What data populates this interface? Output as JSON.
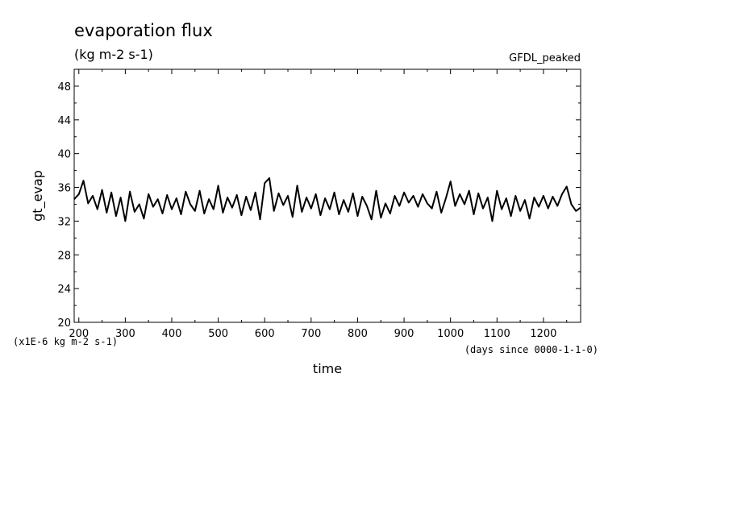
{
  "chart_data": {
    "type": "line",
    "title": "evaporation flux",
    "subtitle": "(kg m-2 s-1)",
    "label_top_right": "GFDL_peaked",
    "xlabel": "time",
    "x_units_note": "(days since 0000-1-1-0)",
    "ylabel": "gt_evap",
    "y_scale_note": "(x1E-6 kg m-2 s-1)",
    "xlim": [
      190,
      1280
    ],
    "ylim": [
      20,
      50
    ],
    "x_ticks": [
      "200",
      "300",
      "400",
      "500",
      "600",
      "700",
      "800",
      "900",
      "1000",
      "1100",
      "1200"
    ],
    "y_ticks": [
      "20",
      "24",
      "28",
      "32",
      "36",
      "40",
      "44",
      "48"
    ],
    "grid": false,
    "legend": "none",
    "line_color": "#000000",
    "series": [
      {
        "x": [
          190,
          200,
          210,
          220,
          230,
          240,
          250,
          260,
          270,
          280,
          290,
          300,
          310,
          320,
          330,
          340,
          350,
          360,
          370,
          380,
          390,
          400,
          410,
          420,
          430,
          440,
          450,
          460,
          470,
          480,
          490,
          500,
          510,
          520,
          530,
          540,
          550,
          560,
          570,
          580,
          590,
          600,
          610,
          620,
          630,
          640,
          650,
          660,
          670,
          680,
          690,
          700,
          710,
          720,
          730,
          740,
          750,
          760,
          770,
          780,
          790,
          800,
          810,
          820,
          830,
          840,
          850,
          860,
          870,
          880,
          890,
          900,
          910,
          920,
          930,
          940,
          950,
          960,
          970,
          980,
          990,
          1000,
          1010,
          1020,
          1030,
          1040,
          1050,
          1060,
          1070,
          1080,
          1090,
          1100,
          1110,
          1120,
          1130,
          1140,
          1150,
          1160,
          1170,
          1180,
          1190,
          1200,
          1210,
          1220,
          1230,
          1240,
          1250,
          1260,
          1270,
          1280
        ],
        "values": [
          34.6,
          35.2,
          36.8,
          34.1,
          35.0,
          33.4,
          35.7,
          33.0,
          35.4,
          32.6,
          34.8,
          32.0,
          35.5,
          33.1,
          34.0,
          32.3,
          35.2,
          33.7,
          34.6,
          32.9,
          35.1,
          33.4,
          34.7,
          32.8,
          35.5,
          34.0,
          33.2,
          35.6,
          32.9,
          34.6,
          33.4,
          36.2,
          33.0,
          34.8,
          33.6,
          35.1,
          32.7,
          34.9,
          33.3,
          35.4,
          32.2,
          36.5,
          37.1,
          33.2,
          35.3,
          33.9,
          35.0,
          32.5,
          36.2,
          33.1,
          34.8,
          33.5,
          35.2,
          32.7,
          34.7,
          33.4,
          35.4,
          32.8,
          34.5,
          33.1,
          35.3,
          32.6,
          34.9,
          33.8,
          32.2,
          35.6,
          32.4,
          34.1,
          32.9,
          35.0,
          33.8,
          35.4,
          34.2,
          35.0,
          33.7,
          35.2,
          34.1,
          33.5,
          35.5,
          33.0,
          34.7,
          36.7,
          33.8,
          35.2,
          34.0,
          35.6,
          32.8,
          35.3,
          33.5,
          34.8,
          32.0,
          35.6,
          33.4,
          34.7,
          32.6,
          35.0,
          33.2,
          34.5,
          32.3,
          34.8,
          33.7,
          35.0,
          33.5,
          34.9,
          33.8,
          35.2,
          36.1,
          34.0,
          33.2,
          33.6
        ]
      }
    ]
  }
}
